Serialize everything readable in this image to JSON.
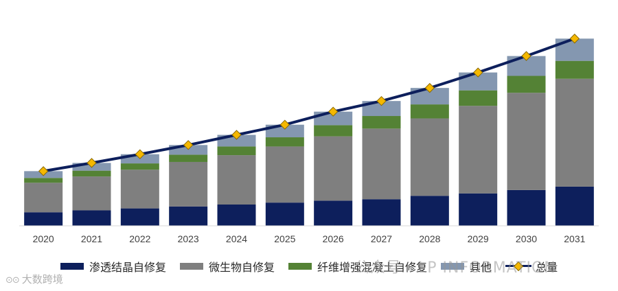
{
  "chart_data": {
    "type": "bar",
    "stacked": true,
    "categories": [
      "2020",
      "2021",
      "2022",
      "2023",
      "2024",
      "2025",
      "2026",
      "2027",
      "2028",
      "2029",
      "2030",
      "2031"
    ],
    "series": [
      {
        "name": "渗透结晶自修复",
        "color": "#0d1f5c",
        "values": [
          2.8,
          3.2,
          3.6,
          4.0,
          4.4,
          4.8,
          5.2,
          5.5,
          6.2,
          6.7,
          7.4,
          8.1
        ]
      },
      {
        "name": "微生物自修复",
        "color": "#7f7f7f",
        "values": [
          6.1,
          7.0,
          8.0,
          9.2,
          10.2,
          11.6,
          13.3,
          14.6,
          16.0,
          18.1,
          20.1,
          22.3
        ]
      },
      {
        "name": "纤维增强混凝土自修复",
        "color": "#548235",
        "values": [
          1.0,
          1.2,
          1.3,
          1.5,
          1.8,
          1.9,
          2.3,
          2.6,
          2.9,
          3.2,
          3.5,
          3.7
        ]
      },
      {
        "name": "其他",
        "color": "#8497b0",
        "values": [
          1.4,
          1.6,
          1.9,
          2.0,
          2.4,
          2.6,
          2.8,
          3.1,
          3.4,
          3.7,
          4.1,
          4.6
        ]
      }
    ],
    "line": {
      "name": "总量",
      "color": "#0d1f5c",
      "marker_color": "#f5b800",
      "values": [
        11.3,
        13.0,
        14.8,
        16.7,
        18.8,
        20.9,
        23.6,
        25.8,
        28.5,
        31.7,
        35.1,
        38.7
      ]
    },
    "ylim": [
      0,
      42
    ],
    "grid": false,
    "legend_position": "bottom"
  },
  "watermark": "公众号 · LP INFORMATION",
  "logo_text": "大数跨境"
}
